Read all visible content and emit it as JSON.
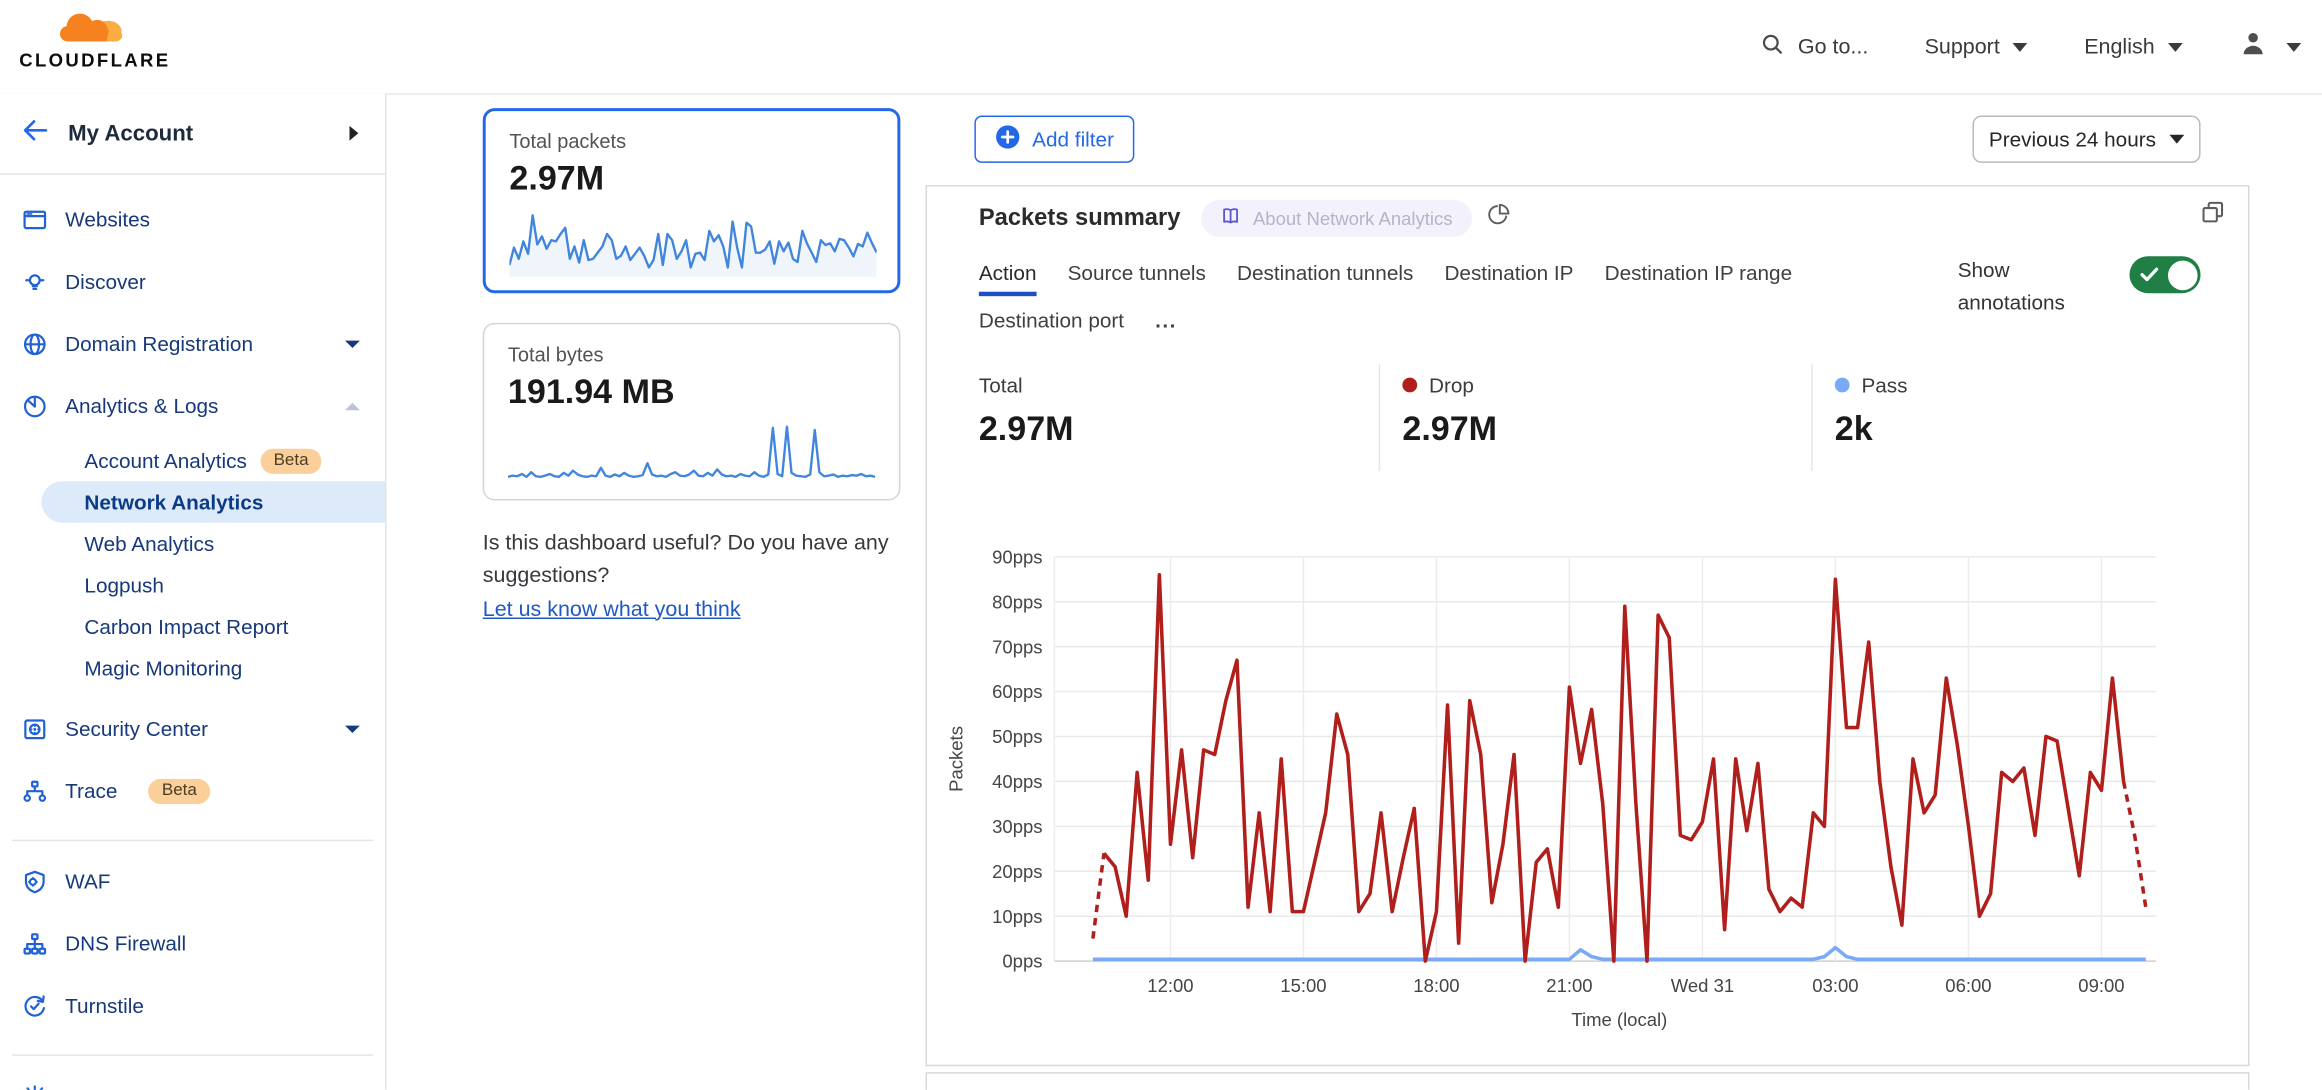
{
  "header": {
    "brand": "CLOUDFLARE",
    "goto": "Go to...",
    "support": "Support",
    "language": "English"
  },
  "sidebar": {
    "account": "My Account",
    "items": [
      {
        "type": "main",
        "icon": "websites-icon",
        "label": "Websites"
      },
      {
        "type": "main",
        "icon": "discover-icon",
        "label": "Discover"
      },
      {
        "type": "main",
        "icon": "globe-icon",
        "label": "Domain Registration",
        "chevron": "down"
      },
      {
        "type": "main",
        "icon": "analytics-icon",
        "label": "Analytics & Logs",
        "chevron": "up"
      },
      {
        "type": "sub",
        "label": "Account Analytics",
        "badge": "Beta"
      },
      {
        "type": "sub",
        "label": "Network Analytics",
        "active": true
      },
      {
        "type": "sub",
        "label": "Web Analytics"
      },
      {
        "type": "sub",
        "label": "Logpush"
      },
      {
        "type": "sub",
        "label": "Carbon Impact Report"
      },
      {
        "type": "sub",
        "label": "Magic Monitoring"
      },
      {
        "type": "main",
        "icon": "security-center-icon",
        "label": "Security Center",
        "chevron": "down"
      },
      {
        "type": "main",
        "icon": "trace-icon",
        "label": "Trace",
        "badge": "Beta"
      },
      {
        "type": "divider"
      },
      {
        "type": "main",
        "icon": "waf-icon",
        "label": "WAF"
      },
      {
        "type": "main",
        "icon": "dns-firewall-icon",
        "label": "DNS Firewall"
      },
      {
        "type": "main",
        "icon": "turnstile-icon",
        "label": "Turnstile"
      },
      {
        "type": "divider"
      },
      {
        "type": "main",
        "icon": "network-burst-icon",
        "label": ""
      }
    ]
  },
  "cards": {
    "packets": {
      "title": "Total packets",
      "value": "2.97M"
    },
    "bytes": {
      "title": "Total bytes",
      "value": "191.94 MB"
    },
    "feedback_text": "Is this dashboard useful? Do you have any suggestions?",
    "feedback_link": "Let us know what you think"
  },
  "toolbar": {
    "add_filter": "Add filter",
    "time_range": "Previous 24 hours"
  },
  "panel": {
    "title": "Packets summary",
    "about_badge": "About Network Analytics",
    "tabs": [
      "Action",
      "Source tunnels",
      "Destination tunnels",
      "Destination IP",
      "Destination IP range",
      "Destination port"
    ],
    "active_tab_index": 0,
    "more_tabs": "...",
    "show_annotations": "Show annotations",
    "stats": [
      {
        "label": "Total",
        "value": "2.97M",
        "dot": null
      },
      {
        "label": "Drop",
        "value": "2.97M",
        "dot": "#b01f1c"
      },
      {
        "label": "Pass",
        "value": "2k",
        "dot": "#7aa9f5"
      }
    ]
  },
  "colors": {
    "accent_blue": "#2368e8",
    "link_blue": "#2058c4",
    "drop_red": "#b01f1c",
    "pass_blue": "#7aa9f5",
    "toggle_green": "#1f7f44",
    "beta_bg": "#fbcf9a",
    "active_item_bg": "#ddeafa",
    "sidebar_text": "#17387a",
    "spark_blue": "#4285dd"
  },
  "chart_data": [
    {
      "type": "line",
      "title": "Packets summary",
      "xlabel": "Time (local)",
      "ylabel": "Packets",
      "ylim": [
        0,
        90
      ],
      "y_ticks": [
        "0pps",
        "10pps",
        "20pps",
        "30pps",
        "40pps",
        "50pps",
        "60pps",
        "70pps",
        "80pps",
        "90pps"
      ],
      "x_ticks": [
        {
          "label": "12:00",
          "t": 1.75
        },
        {
          "label": "15:00",
          "t": 4.75
        },
        {
          "label": "18:00",
          "t": 7.75
        },
        {
          "label": "21:00",
          "t": 10.75
        },
        {
          "label": "Wed 31",
          "t": 13.75
        },
        {
          "label": "03:00",
          "t": 16.75
        },
        {
          "label": "06:00",
          "t": 19.75
        },
        {
          "label": "09:00",
          "t": 22.75
        }
      ],
      "span_hours": 23.75,
      "interval_minutes": 15,
      "grid": true,
      "legend_position": "none",
      "series": [
        {
          "name": "Drop",
          "color": "#b01f1c",
          "dashed_ends": true,
          "values": [
            5,
            24,
            21,
            10,
            42,
            18,
            86,
            26,
            47,
            23,
            47,
            46,
            58,
            67,
            12,
            33,
            11,
            45,
            11,
            11,
            22,
            33,
            55,
            46,
            11,
            15,
            33,
            11,
            23,
            34,
            0,
            11,
            57,
            4,
            58,
            46,
            13,
            26,
            46,
            0,
            22,
            25,
            12,
            61,
            44,
            56,
            35,
            0,
            79,
            35,
            0,
            77,
            72,
            28,
            27,
            31,
            45,
            7,
            45,
            29,
            44,
            16,
            11,
            14,
            12,
            33,
            30,
            85,
            52,
            52,
            71,
            40,
            21,
            8,
            45,
            33,
            37,
            63,
            48,
            30,
            10,
            15,
            42,
            40,
            43,
            28,
            50,
            49,
            34,
            19,
            42,
            38,
            63,
            40,
            28,
            12
          ]
        },
        {
          "name": "Pass",
          "color": "#7aa9f5",
          "dashed_ends": false,
          "values": [
            0.4,
            0.4,
            0.4,
            0.4,
            0.4,
            0.4,
            0.4,
            0.4,
            0.4,
            0.4,
            0.4,
            0.4,
            0.4,
            0.4,
            0.4,
            0.4,
            0.4,
            0.4,
            0.4,
            0.4,
            0.4,
            0.4,
            0.4,
            0.4,
            0.4,
            0.4,
            0.4,
            0.4,
            0.4,
            0.4,
            0.4,
            0.4,
            0.4,
            0.4,
            0.4,
            0.4,
            0.4,
            0.4,
            0.4,
            0.4,
            0.4,
            0.4,
            0.4,
            0.4,
            2.5,
            1,
            0.4,
            0.4,
            0.4,
            0.4,
            0.4,
            0.4,
            0.4,
            0.4,
            0.4,
            0.4,
            0.4,
            0.4,
            0.4,
            0.4,
            0.4,
            0.4,
            0.4,
            0.4,
            0.4,
            0.4,
            1,
            3,
            1,
            0.4,
            0.4,
            0.4,
            0.4,
            0.4,
            0.4,
            0.4,
            0.4,
            0.4,
            0.4,
            0.4,
            0.4,
            0.4,
            0.4,
            0.4,
            0.4,
            0.4,
            0.4,
            0.4,
            0.4,
            0.4,
            0.4,
            0.4,
            0.4,
            0.4,
            0.4,
            0.4
          ]
        }
      ]
    },
    {
      "type": "line",
      "title": "Total packets sparkline",
      "color": "#4285dd",
      "ylim": [
        0,
        100
      ],
      "values": [
        12,
        40,
        22,
        50,
        30,
        92,
        45,
        58,
        38,
        52,
        50,
        62,
        72,
        22,
        42,
        16,
        52,
        20,
        22,
        32,
        42,
        62,
        52,
        22,
        27,
        42,
        20,
        30,
        40,
        27,
        8,
        20,
        62,
        12,
        62,
        52,
        22,
        34,
        52,
        8,
        30,
        32,
        20,
        67,
        50,
        60,
        42,
        8,
        82,
        40,
        8,
        80,
        74,
        32,
        32,
        37,
        50,
        14,
        50,
        34,
        48,
        22,
        17,
        67,
        47,
        32,
        17,
        52,
        44,
        47,
        34,
        54,
        52,
        40,
        26,
        46,
        42,
        64,
        47,
        32
      ]
    },
    {
      "type": "line",
      "title": "Total bytes sparkline",
      "color": "#4285dd",
      "ylim": [
        0,
        100
      ],
      "values": [
        8,
        10,
        9,
        13,
        8,
        16,
        9,
        8,
        10,
        13,
        9,
        8,
        15,
        10,
        19,
        12,
        9,
        8,
        10,
        9,
        24,
        10,
        8,
        12,
        9,
        15,
        10,
        8,
        9,
        11,
        32,
        12,
        9,
        10,
        8,
        13,
        16,
        10,
        9,
        12,
        19,
        10,
        9,
        15,
        10,
        21,
        12,
        9,
        10,
        8,
        13,
        10,
        9,
        16,
        10,
        8,
        12,
        95,
        13,
        9,
        97,
        15,
        10,
        9,
        8,
        12,
        91,
        16,
        9,
        10,
        12,
        8,
        10,
        9,
        11,
        10,
        13,
        9,
        10,
        8
      ]
    }
  ]
}
